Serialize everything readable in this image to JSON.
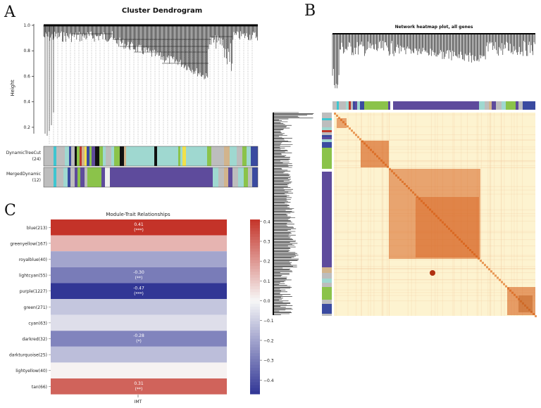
{
  "panels": {
    "a": {
      "letter": "A",
      "title": "Cluster Dendrogram",
      "ylabel": "Height",
      "yticks": [
        "1.0",
        "0.8",
        "0.6",
        "0.4",
        "0.2"
      ],
      "ytick_values": [
        1.0,
        0.8,
        0.6,
        0.4,
        0.2
      ],
      "ylim": [
        0.15,
        1.0
      ],
      "row1_label": "DynamicTreeCut",
      "row1_count": "(24)",
      "row2_label": "MergedDynamic",
      "row2_count": "(12)"
    },
    "b": {
      "letter": "B",
      "title": "Network heatmap plot, all genes"
    },
    "c": {
      "letter": "C",
      "title": "Module-Trait Relationships",
      "xlabel": "IMT"
    }
  },
  "colors": {
    "turquoise": "#9fd8d0",
    "grey": "#bdbdbd",
    "green": "#8bc34a",
    "purple": "#5e4b9c",
    "blue": "#3a4aa0",
    "black": "#111111",
    "yellow": "#f1e14a",
    "tan": "#d2b48c",
    "red": "#c0392b",
    "cyan": "#3ec6d0",
    "heat_bg": "#fdf3d0",
    "heat_hot": "#d4550e"
  },
  "chart_data": {
    "type": "heatmap",
    "title": "Module-Trait Relationships",
    "xlabel": "IMT",
    "columns": [
      "IMT"
    ],
    "rows": [
      {
        "label": "blue(213)",
        "value": 0.41,
        "text": "0.41",
        "sig": "(***)"
      },
      {
        "label": "greenyellow(167)",
        "value": 0.14,
        "text": "",
        "sig": ""
      },
      {
        "label": "royalblue(40)",
        "value": -0.2,
        "text": "",
        "sig": ""
      },
      {
        "label": "lightcyan(55)",
        "value": -0.3,
        "text": "-0.30",
        "sig": "(**)"
      },
      {
        "label": "purple(1227)",
        "value": -0.47,
        "text": "-0.47",
        "sig": "(***)"
      },
      {
        "label": "green(271)",
        "value": -0.12,
        "text": "",
        "sig": ""
      },
      {
        "label": "cyan(63)",
        "value": -0.06,
        "text": "",
        "sig": ""
      },
      {
        "label": "darkred(32)",
        "value": -0.28,
        "text": "-0.28",
        "sig": "(*)"
      },
      {
        "label": "darkturquoise(25)",
        "value": -0.14,
        "text": "",
        "sig": ""
      },
      {
        "label": "lightyellow(40)",
        "value": 0.01,
        "text": "",
        "sig": ""
      },
      {
        "label": "tan(66)",
        "value": 0.31,
        "text": "0.31",
        "sig": "(**)"
      }
    ],
    "colorbar": {
      "range": [
        -0.47,
        0.41
      ],
      "ticks": [
        0.4,
        0.3,
        0.2,
        0.1,
        0.0,
        -0.1,
        -0.2,
        -0.3,
        -0.4
      ],
      "tick_labels": [
        "0.4",
        "0.3",
        "0.2",
        "0.1",
        "0.0",
        "−0.1",
        "−0.2",
        "−0.3",
        "−0.4"
      ]
    }
  }
}
